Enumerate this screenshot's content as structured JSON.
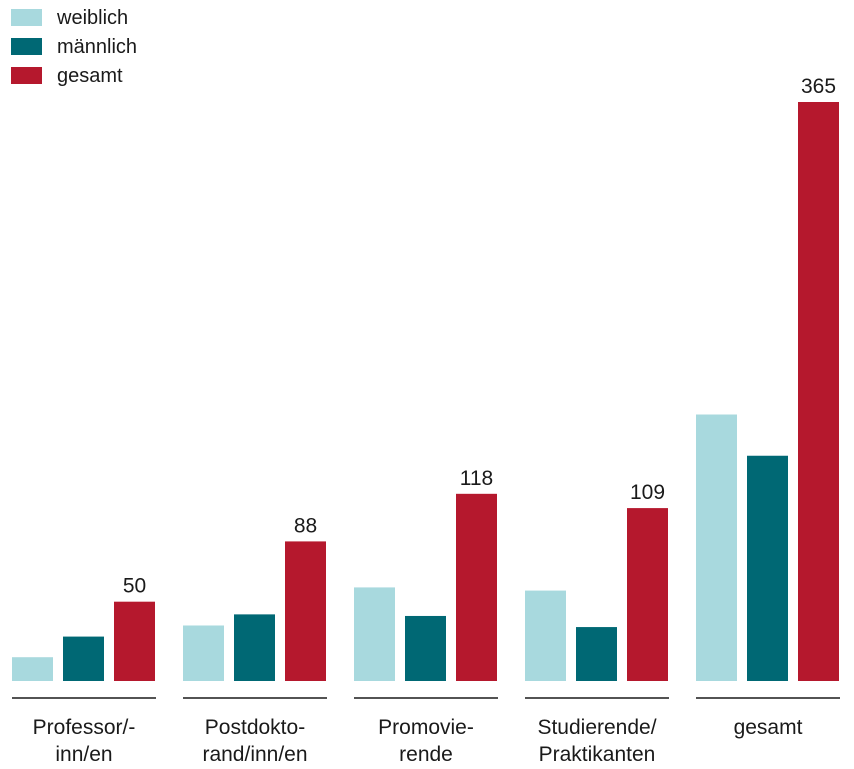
{
  "chart_data": {
    "type": "bar",
    "title": "",
    "xlabel": "",
    "ylabel": "",
    "ylim": [
      0,
      380
    ],
    "grid": false,
    "legend_position": "top-left",
    "categories": [
      [
        "Professor/-",
        "inn/en"
      ],
      [
        "Postdokto-",
        "rand/inn/en"
      ],
      [
        "Promovie-",
        "rende"
      ],
      [
        "Studierende/",
        "Praktikanten"
      ],
      [
        "gesamt"
      ]
    ],
    "series": [
      {
        "name": "weiblich",
        "color": "#a8d9de",
        "values": [
          15,
          35,
          59,
          57,
          168
        ]
      },
      {
        "name": "männlich",
        "color": "#006874",
        "values": [
          28,
          42,
          41,
          34,
          142
        ]
      },
      {
        "name": "gesamt",
        "color": "#b5182d",
        "values": [
          50,
          88,
          118,
          109,
          365
        ]
      }
    ],
    "data_labels": [
      "",
      "",
      [
        "50",
        "88",
        "118",
        "109",
        "365"
      ]
    ]
  }
}
